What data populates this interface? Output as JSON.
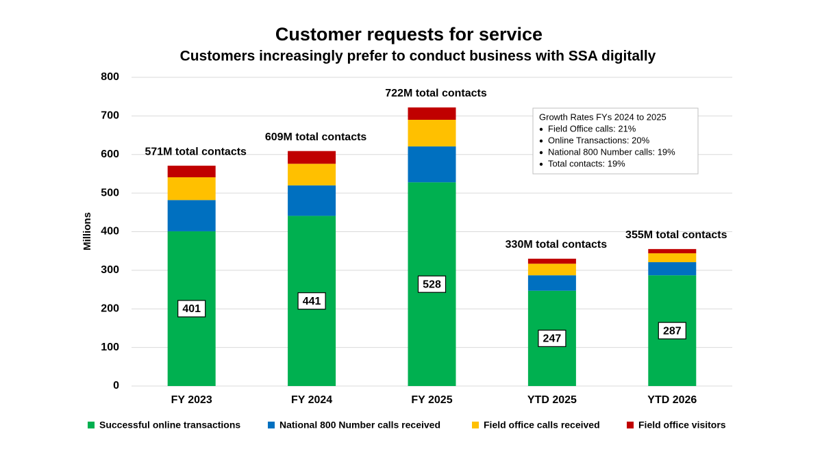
{
  "chart_data": {
    "type": "bar",
    "stacked": true,
    "title": "Customer requests for service",
    "subtitle": "Customers increasingly prefer to conduct business with SSA digitally",
    "y_label": "Millions",
    "categories": [
      "FY 2023",
      "FY 2024",
      "FY 2025",
      "YTD 2025",
      "YTD 2026"
    ],
    "series": [
      {
        "name": "Successful online transactions",
        "color": "#00b050",
        "values": [
          401,
          441,
          528,
          247,
          287
        ],
        "show_values": true
      },
      {
        "name": "National 800 Number calls received",
        "color": "#0070c0",
        "values": [
          81,
          79,
          93,
          40,
          34
        ]
      },
      {
        "name": "Field office calls received",
        "color": "#ffc000",
        "values": [
          59,
          56,
          69,
          30,
          23
        ]
      },
      {
        "name": "Field office visitors",
        "color": "#c00000",
        "values": [
          30,
          33,
          32,
          13,
          11
        ]
      }
    ],
    "annotations": [
      "571M total contacts",
      "609M total contacts",
      "722M total contacts",
      "330M total contacts",
      "355M total contacts"
    ],
    "text_box": {
      "title": "Growth Rates FYs 2024 to 2025",
      "items": [
        "Field Office calls:  21%",
        "Online Transactions:  20%",
        "National 800 Number calls:  19%",
        "Total contacts:  19%"
      ]
    },
    "ylim": [
      0,
      800
    ],
    "yticks": [
      0,
      100,
      200,
      300,
      400,
      500,
      600,
      700,
      800
    ],
    "grid": true,
    "legend": "bottom"
  }
}
